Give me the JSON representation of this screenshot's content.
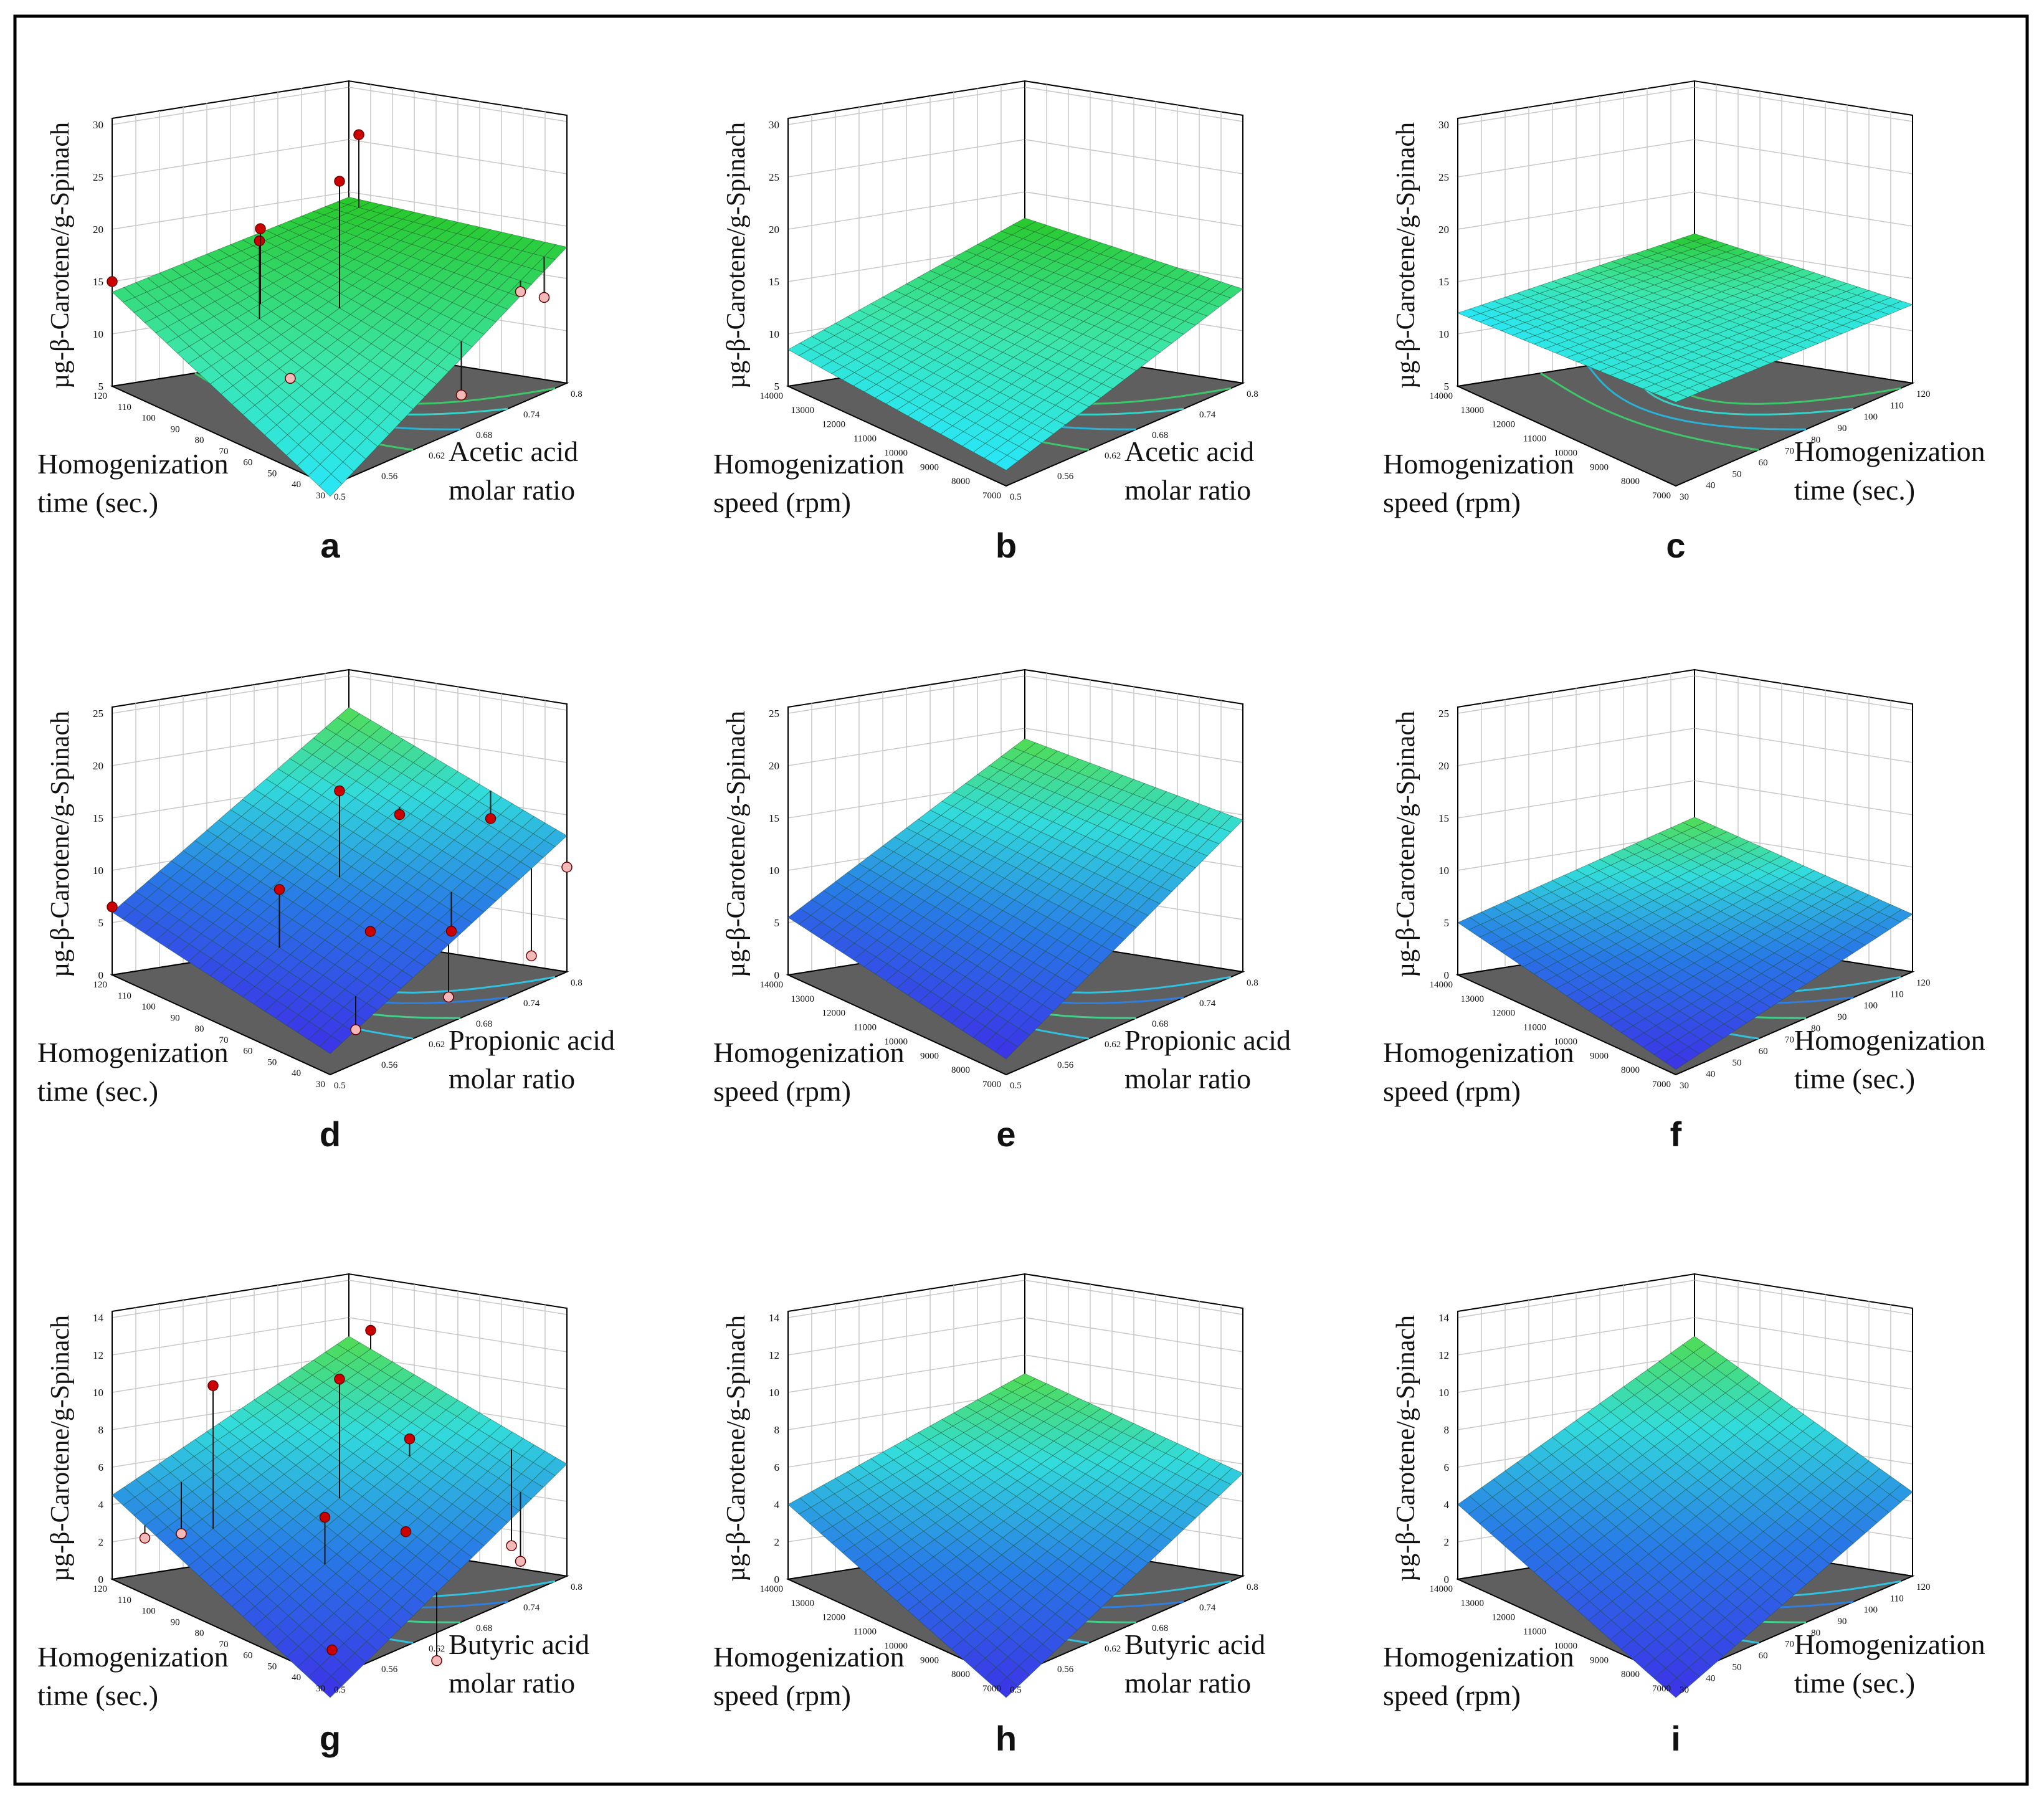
{
  "figure": {
    "colors": {
      "frame": "#000000",
      "floor": "#5f5f5f",
      "grid": "#c8c8c8",
      "wire": "#1f4f2f",
      "point_high": "#cc0000",
      "point_low": "#f3b8b8"
    }
  },
  "chart_data": [
    {
      "panel": "a",
      "type": "surface3d",
      "surface": "green",
      "zlabel": "µg-β-Carotene/g-Spinach",
      "zlim": [
        5,
        30
      ],
      "zticks": [
        "5",
        "10",
        "15",
        "20",
        "25",
        "30"
      ],
      "left_axis": {
        "label_lines": [
          "Homogenization",
          "time (sec.)"
        ],
        "ticks": [
          "120",
          "110",
          "100",
          "90",
          "80",
          "70",
          "60",
          "50",
          "40",
          "30"
        ]
      },
      "right_axis": {
        "label_lines": [
          "Acetic acid",
          "molar ratio"
        ],
        "ticks": [
          "0.5",
          "0.56",
          "0.62",
          "0.68",
          "0.74",
          "0.8"
        ]
      },
      "corner_values": {
        "back": 19.5,
        "left": 14.0,
        "right": 18.0,
        "front": 4.0
      },
      "points": [
        {
          "u": 0.5,
          "v": 0.5,
          "z": 26.0,
          "above": true
        },
        {
          "u": 0.95,
          "v": 0.1,
          "z": 26.0,
          "above": true
        },
        {
          "u": 0.3,
          "v": 0.35,
          "z": 20.5,
          "above": true
        },
        {
          "u": 0.35,
          "v": 0.3,
          "z": 21.0,
          "above": true
        },
        {
          "u": 0.0,
          "v": 0.0,
          "z": 15.0,
          "above": true
        },
        {
          "u": 0.2,
          "v": 0.6,
          "z": 10.0,
          "above": false
        },
        {
          "u": 0.85,
          "v": 0.95,
          "z": 15.0,
          "above": false
        },
        {
          "u": 0.6,
          "v": 0.95,
          "z": 7.5,
          "above": false
        },
        {
          "u": 0.95,
          "v": 0.95,
          "z": 13.5,
          "above": false
        }
      ]
    },
    {
      "panel": "b",
      "type": "surface3d",
      "surface": "green",
      "zlabel": "µg-β-Carotene/g-Spinach",
      "zlim": [
        5,
        30
      ],
      "zticks": [
        "5",
        "10",
        "15",
        "20",
        "25",
        "30"
      ],
      "left_axis": {
        "label_lines": [
          "Homogenization",
          "speed (rpm)"
        ],
        "ticks": [
          "14000",
          "13000",
          "12000",
          "11000",
          "10000",
          "9000",
          "8000",
          "7000"
        ]
      },
      "right_axis": {
        "label_lines": [
          "Acetic acid",
          "molar ratio"
        ],
        "ticks": [
          "0.5",
          "0.56",
          "0.62",
          "0.68",
          "0.74",
          "0.8"
        ]
      },
      "corner_values": {
        "back": 17.5,
        "left": 8.5,
        "right": 14.0,
        "front": 6.5
      },
      "points": []
    },
    {
      "panel": "c",
      "type": "surface3d",
      "surface": "green",
      "zlabel": "µg-β-Carotene/g-Spinach",
      "zlim": [
        5,
        30
      ],
      "zticks": [
        "5",
        "10",
        "15",
        "20",
        "25",
        "30"
      ],
      "left_axis": {
        "label_lines": [
          "Homogenization",
          "speed (rpm)"
        ],
        "ticks": [
          "14000",
          "13000",
          "12000",
          "11000",
          "10000",
          "9000",
          "8000",
          "7000"
        ]
      },
      "right_axis": {
        "label_lines": [
          "Homogenization",
          "time (sec.)"
        ],
        "ticks": [
          "30",
          "40",
          "50",
          "60",
          "70",
          "80",
          "90",
          "100",
          "110",
          "120"
        ]
      },
      "corner_values": {
        "back": 16.0,
        "left": 12.0,
        "right": 12.5,
        "front": 13.0
      },
      "points": []
    },
    {
      "panel": "d",
      "type": "surface3d",
      "surface": "blue",
      "zlabel": "µg-β-Carotene/g-Spinach",
      "zlim": [
        0,
        25
      ],
      "zticks": [
        "0",
        "5",
        "10",
        "15",
        "20",
        "25"
      ],
      "left_axis": {
        "label_lines": [
          "Homogenization",
          "time (sec.)"
        ],
        "ticks": [
          "120",
          "110",
          "100",
          "90",
          "80",
          "70",
          "60",
          "50",
          "40",
          "30"
        ]
      },
      "right_axis": {
        "label_lines": [
          "Propionic acid",
          "molar ratio"
        ],
        "ticks": [
          "0.5",
          "0.56",
          "0.62",
          "0.68",
          "0.74",
          "0.8"
        ]
      },
      "corner_values": {
        "back": 22.0,
        "left": 6.0,
        "right": 13.0,
        "front": 2.0
      },
      "points": [
        {
          "u": 0.5,
          "v": 0.5,
          "z": 19.0,
          "above": true
        },
        {
          "u": 0.8,
          "v": 0.45,
          "z": 14.5,
          "above": true
        },
        {
          "u": 1.0,
          "v": 0.65,
          "z": 13.5,
          "above": true
        },
        {
          "u": 0.2,
          "v": 0.55,
          "z": 12.0,
          "above": true
        },
        {
          "u": 0.4,
          "v": 0.75,
          "z": 8.0,
          "above": true
        },
        {
          "u": 0.65,
          "v": 0.85,
          "z": 6.5,
          "above": true
        },
        {
          "u": 0.0,
          "v": 0.0,
          "z": 6.5,
          "above": true
        },
        {
          "u": 0.2,
          "v": 0.9,
          "z": 1.5,
          "above": false
        },
        {
          "u": 0.5,
          "v": 1.0,
          "z": 2.5,
          "above": false
        },
        {
          "u": 1.0,
          "v": 1.0,
          "z": 10.0,
          "above": false
        },
        {
          "u": 0.85,
          "v": 1.0,
          "z": 3.0,
          "above": false
        }
      ]
    },
    {
      "panel": "e",
      "type": "surface3d",
      "surface": "blue",
      "zlabel": "µg-β-Carotene/g-Spinach",
      "zlim": [
        0,
        25
      ],
      "zticks": [
        "0",
        "5",
        "10",
        "15",
        "20",
        "25"
      ],
      "left_axis": {
        "label_lines": [
          "Homogenization",
          "speed (rpm)"
        ],
        "ticks": [
          "14000",
          "13000",
          "12000",
          "11000",
          "10000",
          "9000",
          "8000",
          "7000"
        ]
      },
      "right_axis": {
        "label_lines": [
          "Propionic acid",
          "molar ratio"
        ],
        "ticks": [
          "0.5",
          "0.56",
          "0.62",
          "0.68",
          "0.74",
          "0.8"
        ]
      },
      "corner_values": {
        "back": 19.0,
        "left": 5.5,
        "right": 14.5,
        "front": 1.5
      },
      "points": []
    },
    {
      "panel": "f",
      "type": "surface3d",
      "surface": "blue",
      "zlabel": "µg-β-Carotene/g-Spinach",
      "zlim": [
        0,
        25
      ],
      "zticks": [
        "0",
        "5",
        "10",
        "15",
        "20",
        "25"
      ],
      "left_axis": {
        "label_lines": [
          "Homogenization",
          "speed (rpm)"
        ],
        "ticks": [
          "14000",
          "13000",
          "12000",
          "11000",
          "10000",
          "9000",
          "8000",
          "7000"
        ]
      },
      "right_axis": {
        "label_lines": [
          "Homogenization",
          "time (sec.)"
        ],
        "ticks": [
          "30",
          "40",
          "50",
          "60",
          "70",
          "80",
          "90",
          "100",
          "110",
          "120"
        ]
      },
      "corner_values": {
        "back": 11.5,
        "left": 5.0,
        "right": 5.5,
        "front": 0.5
      },
      "points": []
    },
    {
      "panel": "g",
      "type": "surface3d",
      "surface": "blue",
      "zlabel": "µg-β-Carotene/g-Spinach",
      "zlim": [
        0,
        14
      ],
      "zticks": [
        "0",
        "2",
        "4",
        "6",
        "8",
        "10",
        "12",
        "14"
      ],
      "left_axis": {
        "label_lines": [
          "Homogenization",
          "time (sec.)"
        ],
        "ticks": [
          "120",
          "110",
          "100",
          "90",
          "80",
          "70",
          "60",
          "50",
          "40",
          "30"
        ]
      },
      "right_axis": {
        "label_lines": [
          "Butyric acid",
          "molar ratio"
        ],
        "ticks": [
          "0.5",
          "0.56",
          "0.62",
          "0.68",
          "0.74",
          "0.8"
        ]
      },
      "corner_values": {
        "back": 11.0,
        "left": 4.5,
        "right": 6.0,
        "front": -1.0
      },
      "points": [
        {
          "u": 0.5,
          "v": 0.5,
          "z": 11.5,
          "above": true
        },
        {
          "u": 1.0,
          "v": 0.1,
          "z": 11.5,
          "above": true
        },
        {
          "u": 0.15,
          "v": 0.3,
          "z": 11.5,
          "above": true
        },
        {
          "u": 0.75,
          "v": 0.55,
          "z": 7.5,
          "above": true
        },
        {
          "u": 0.3,
          "v": 0.65,
          "z": 5.5,
          "above": true
        },
        {
          "u": 0.55,
          "v": 0.75,
          "z": 4.0,
          "above": true
        },
        {
          "u": 0.1,
          "v": 0.9,
          "z": 0.5,
          "above": true
        },
        {
          "u": 0.2,
          "v": 0.1,
          "z": 2.5,
          "above": false
        },
        {
          "u": 0.0,
          "v": 0.15,
          "z": 3.0,
          "above": false
        },
        {
          "u": 0.85,
          "v": 0.95,
          "z": 1.5,
          "above": false
        },
        {
          "u": 0.95,
          "v": 0.8,
          "z": 1.5,
          "above": false
        },
        {
          "u": 0.45,
          "v": 1.0,
          "z": -1.5,
          "above": false
        }
      ]
    },
    {
      "panel": "h",
      "type": "surface3d",
      "surface": "blue",
      "zlabel": "µg-β-Carotene/g-Spinach",
      "zlim": [
        0,
        14
      ],
      "zticks": [
        "0",
        "2",
        "4",
        "6",
        "8",
        "10",
        "12",
        "14"
      ],
      "left_axis": {
        "label_lines": [
          "Homogenization",
          "speed (rpm)"
        ],
        "ticks": [
          "14000",
          "13000",
          "12000",
          "11000",
          "10000",
          "9000",
          "8000",
          "7000"
        ]
      },
      "right_axis": {
        "label_lines": [
          "Butyric acid",
          "molar ratio"
        ],
        "ticks": [
          "0.5",
          "0.56",
          "0.62",
          "0.68",
          "0.74",
          "0.8"
        ]
      },
      "corner_values": {
        "back": 9.0,
        "left": 4.0,
        "right": 5.5,
        "front": -1.0
      },
      "points": []
    },
    {
      "panel": "i",
      "type": "surface3d",
      "surface": "blue",
      "zlabel": "µg-β-Carotene/g-Spinach",
      "zlim": [
        0,
        14
      ],
      "zticks": [
        "0",
        "2",
        "4",
        "6",
        "8",
        "10",
        "12",
        "14"
      ],
      "left_axis": {
        "label_lines": [
          "Homogenization",
          "speed (rpm)"
        ],
        "ticks": [
          "14000",
          "13000",
          "12000",
          "11000",
          "10000",
          "9000",
          "8000",
          "7000"
        ]
      },
      "right_axis": {
        "label_lines": [
          "Homogenization",
          "time (sec.)"
        ],
        "ticks": [
          "30",
          "40",
          "50",
          "60",
          "70",
          "80",
          "90",
          "100",
          "110",
          "120"
        ]
      },
      "corner_values": {
        "back": 11.0,
        "left": 4.0,
        "right": 4.5,
        "front": -1.0
      },
      "points": []
    }
  ]
}
